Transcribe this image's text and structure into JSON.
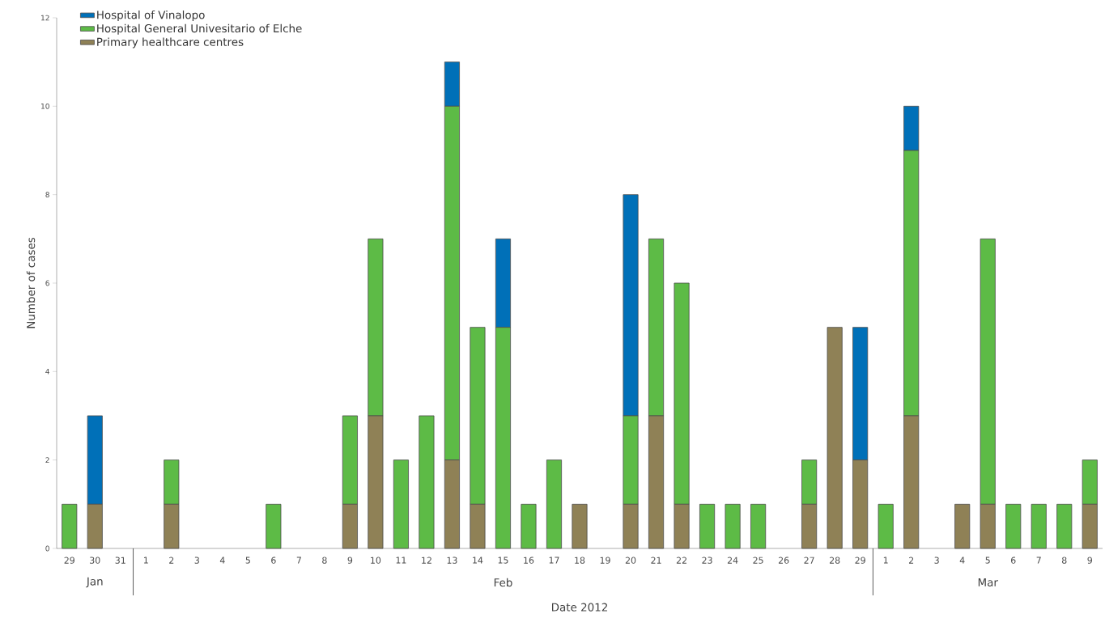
{
  "chart_data": {
    "type": "bar",
    "stacked": true,
    "xlabel": "Date 2012",
    "ylabel": "Number of cases",
    "categories": [
      "29",
      "30",
      "31",
      "1",
      "2",
      "3",
      "4",
      "5",
      "6",
      "7",
      "8",
      "9",
      "10",
      "11",
      "12",
      "13",
      "14",
      "15",
      "16",
      "17",
      "18",
      "19",
      "20",
      "21",
      "22",
      "23",
      "24",
      "25",
      "26",
      "27",
      "28",
      "29",
      "1",
      "2",
      "3",
      "4",
      "5",
      "6",
      "7",
      "8",
      "9"
    ],
    "series": [
      {
        "name": "Primary healthcare centres",
        "color": "#8f8156",
        "values": [
          0,
          1,
          0,
          0,
          1,
          0,
          0,
          0,
          0,
          0,
          0,
          1,
          3,
          0,
          0,
          2,
          1,
          0,
          0,
          0,
          1,
          0,
          1,
          3,
          1,
          0,
          0,
          0,
          0,
          1,
          5,
          2,
          0,
          3,
          0,
          1,
          1,
          0,
          0,
          0,
          1
        ]
      },
      {
        "name": "Hospital General Univesitario of Elche",
        "color": "#5dbb46",
        "values": [
          1,
          0,
          0,
          0,
          1,
          0,
          0,
          0,
          1,
          0,
          0,
          2,
          4,
          2,
          3,
          8,
          4,
          5,
          1,
          2,
          0,
          0,
          2,
          4,
          5,
          1,
          1,
          1,
          0,
          1,
          0,
          0,
          1,
          6,
          0,
          0,
          6,
          1,
          1,
          1,
          1
        ]
      },
      {
        "name": "Hospital of Vinalopo",
        "color": "#0070b8",
        "values": [
          0,
          2,
          0,
          0,
          0,
          0,
          0,
          0,
          0,
          0,
          0,
          0,
          0,
          0,
          0,
          1,
          0,
          2,
          0,
          0,
          0,
          0,
          5,
          0,
          0,
          0,
          0,
          0,
          0,
          0,
          0,
          3,
          0,
          1,
          0,
          0,
          0,
          0,
          0,
          0,
          0
        ]
      }
    ],
    "ylim": [
      0,
      12
    ],
    "yticks": [
      0,
      2,
      4,
      6,
      8,
      10,
      12
    ],
    "legend": "top left",
    "annotations": [
      "Jan",
      "Feb",
      "Mar"
    ]
  }
}
